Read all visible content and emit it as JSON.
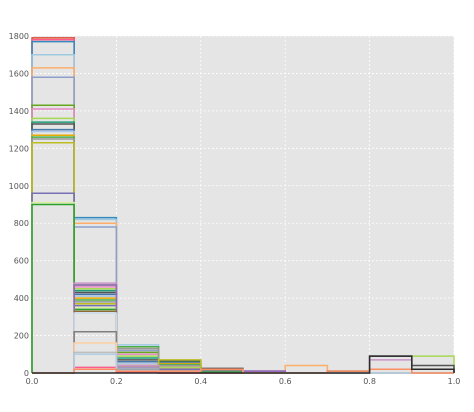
{
  "chart_data": {
    "type": "histogram",
    "title": "",
    "xlabel": "",
    "ylabel": "",
    "xlim": [
      0.0,
      1.0
    ],
    "ylim": [
      0,
      1800
    ],
    "grid": true,
    "legend": "none",
    "plot_background": "#e5e5e5",
    "x_ticks": [
      "0.0",
      "0.2",
      "0.4",
      "0.6",
      "0.8",
      "1.0"
    ],
    "y_ticks": [
      "0",
      "200",
      "400",
      "600",
      "800",
      "1000",
      "1200",
      "1400",
      "1600",
      "1800"
    ],
    "bin_edges": [
      0.0,
      0.1,
      0.2,
      0.3,
      0.4,
      0.5,
      0.6,
      0.7,
      0.8,
      0.9,
      1.0
    ],
    "series": [
      {
        "color": "#e24a33",
        "counts": [
          1790,
          20,
          5,
          0,
          0,
          0,
          0,
          0,
          0,
          0
        ]
      },
      {
        "color": "#ff5b8c",
        "counts": [
          1780,
          30,
          5,
          0,
          0,
          0,
          0,
          0,
          0,
          0
        ]
      },
      {
        "color": "#348abd",
        "counts": [
          1770,
          830,
          140,
          15,
          5,
          0,
          0,
          0,
          0,
          0
        ]
      },
      {
        "color": "#9ecae1",
        "counts": [
          1700,
          820,
          150,
          20,
          10,
          0,
          0,
          0,
          0,
          0
        ]
      },
      {
        "color": "#fdae6b",
        "counts": [
          1630,
          800,
          130,
          25,
          10,
          0,
          40,
          0,
          0,
          0
        ]
      },
      {
        "color": "#8da0cb",
        "counts": [
          1580,
          780,
          120,
          30,
          15,
          5,
          0,
          0,
          0,
          0
        ]
      },
      {
        "color": "#66a61e",
        "counts": [
          1430,
          470,
          110,
          40,
          20,
          0,
          0,
          0,
          0,
          0
        ]
      },
      {
        "color": "#e78ac3",
        "counts": [
          1410,
          460,
          100,
          35,
          15,
          0,
          0,
          0,
          0,
          0
        ]
      },
      {
        "color": "#a6d854",
        "counts": [
          1360,
          450,
          90,
          30,
          10,
          0,
          0,
          0,
          0,
          90
        ]
      },
      {
        "color": "#1b9e77",
        "counts": [
          1340,
          440,
          80,
          60,
          20,
          0,
          0,
          0,
          0,
          0
        ]
      },
      {
        "color": "#555555",
        "counts": [
          1330,
          430,
          70,
          65,
          25,
          10,
          0,
          10,
          90,
          40
        ]
      },
      {
        "color": "#4477aa",
        "counts": [
          1300,
          420,
          60,
          55,
          20,
          0,
          0,
          0,
          0,
          0
        ]
      },
      {
        "color": "#aec7e8",
        "counts": [
          1290,
          410,
          50,
          50,
          15,
          0,
          0,
          0,
          0,
          0
        ]
      },
      {
        "color": "#e6ab02",
        "counts": [
          1270,
          400,
          40,
          50,
          15,
          0,
          0,
          0,
          0,
          0
        ]
      },
      {
        "color": "#4daf4a",
        "counts": [
          1260,
          390,
          140,
          45,
          10,
          0,
          0,
          0,
          0,
          0
        ]
      },
      {
        "color": "#999999",
        "counts": [
          1250,
          380,
          130,
          40,
          10,
          0,
          0,
          0,
          0,
          0
        ]
      },
      {
        "color": "#bcbd22",
        "counts": [
          1230,
          370,
          30,
          70,
          10,
          0,
          0,
          0,
          0,
          0
        ]
      },
      {
        "color": "#7570b3",
        "counts": [
          960,
          360,
          20,
          20,
          10,
          0,
          0,
          0,
          0,
          0
        ]
      },
      {
        "color": "#d9f0a3",
        "counts": [
          910,
          350,
          20,
          10,
          5,
          0,
          0,
          0,
          0,
          0
        ]
      },
      {
        "color": "#2ca02c",
        "counts": [
          900,
          340,
          20,
          10,
          5,
          0,
          0,
          0,
          0,
          0
        ]
      },
      {
        "color": "#c994c7",
        "counts": [
          0,
          480,
          40,
          10,
          20,
          10,
          0,
          0,
          70,
          0
        ]
      },
      {
        "color": "#9467bd",
        "counts": [
          0,
          470,
          30,
          10,
          20,
          10,
          0,
          0,
          0,
          0
        ]
      },
      {
        "color": "#8c6d31",
        "counts": [
          0,
          330,
          25,
          10,
          20,
          0,
          0,
          0,
          0,
          0
        ]
      },
      {
        "color": "#c6dbef",
        "counts": [
          0,
          320,
          25,
          10,
          20,
          0,
          0,
          0,
          0,
          0
        ]
      },
      {
        "color": "#7f7f7f",
        "counts": [
          0,
          220,
          20,
          10,
          20,
          0,
          0,
          0,
          0,
          0
        ]
      },
      {
        "color": "#fdd0a2",
        "counts": [
          0,
          160,
          15,
          10,
          20,
          0,
          0,
          0,
          0,
          0
        ]
      },
      {
        "color": "#bdbdbd",
        "counts": [
          0,
          110,
          15,
          10,
          20,
          0,
          0,
          0,
          0,
          0
        ]
      },
      {
        "color": "#b3cde3",
        "counts": [
          0,
          100,
          15,
          10,
          20,
          0,
          0,
          0,
          0,
          0
        ]
      },
      {
        "color": "#fc8d62",
        "counts": [
          0,
          20,
          10,
          10,
          20,
          0,
          0,
          10,
          20,
          0
        ]
      },
      {
        "color": "#2b2b2b",
        "counts": [
          0,
          0,
          0,
          0,
          0,
          0,
          0,
          0,
          90,
          20
        ]
      }
    ]
  }
}
